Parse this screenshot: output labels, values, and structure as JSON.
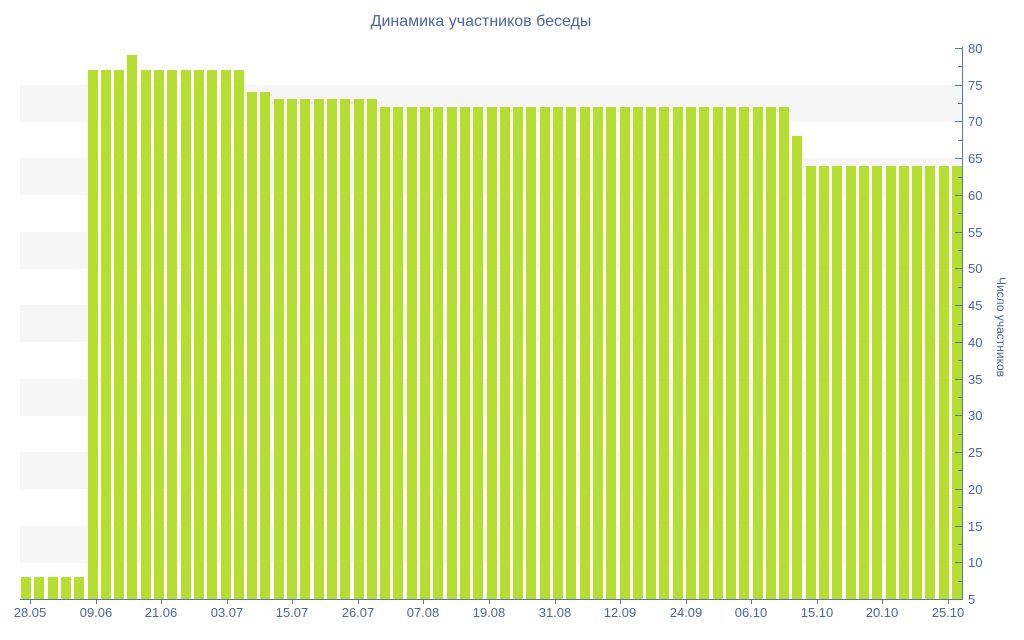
{
  "colors": {
    "bar": "#b6de30",
    "axis": "#5878ad",
    "text": "#4a67a1",
    "band": "#f6f6f7",
    "background": "#ffffff"
  },
  "chart_data": {
    "type": "bar",
    "title": "Динамика участников беседы",
    "ylabel": "Число участников",
    "xlabel": "",
    "ylim": [
      5,
      80
    ],
    "y_ticks": [
      5,
      10,
      15,
      20,
      25,
      30,
      35,
      40,
      45,
      50,
      55,
      60,
      65,
      70,
      75,
      80
    ],
    "y_minor_step": 2.5,
    "grid": "alternating-horizontal-bands",
    "legend_position": "none",
    "x_tick_labels": [
      "28.05",
      "09.06",
      "21.06",
      "03.07",
      "15.07",
      "26.07",
      "07.08",
      "19.08",
      "31.08",
      "12.09",
      "24.09",
      "06.10",
      "15.10",
      "20.10",
      "25.10"
    ],
    "values": [
      8,
      8,
      8,
      8,
      8,
      77,
      77,
      77,
      79,
      77,
      77,
      77,
      77,
      77,
      77,
      77,
      77,
      74,
      74,
      73,
      73,
      73,
      73,
      73,
      73,
      73,
      73,
      72,
      72,
      72,
      72,
      72,
      72,
      72,
      72,
      72,
      72,
      72,
      72,
      72,
      72,
      72,
      72,
      72,
      72,
      72,
      72,
      72,
      72,
      72,
      72,
      72,
      72,
      72,
      72,
      72,
      72,
      72,
      68,
      64,
      64,
      64,
      64,
      64,
      64,
      64,
      64,
      64,
      64,
      64,
      64
    ]
  }
}
